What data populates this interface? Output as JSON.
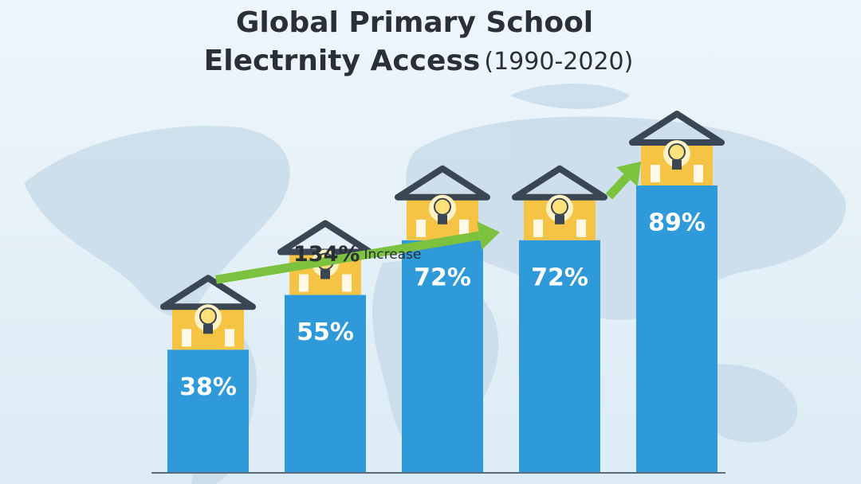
{
  "chart_data": {
    "type": "bar",
    "title": [
      "Global Primary School",
      "Electrnity Access"
    ],
    "subtitle": "(1990-2020)",
    "annotation": [
      "134%",
      "Increase"
    ],
    "categories": [
      null,
      null,
      null,
      null,
      null
    ],
    "values": [
      38,
      55,
      72,
      72,
      89
    ],
    "value_labels": [
      "38%",
      "55%",
      "72%",
      "72%",
      "89%"
    ],
    "color": "#2f9ad9",
    "arrow_color": "#7cc23f"
  }
}
